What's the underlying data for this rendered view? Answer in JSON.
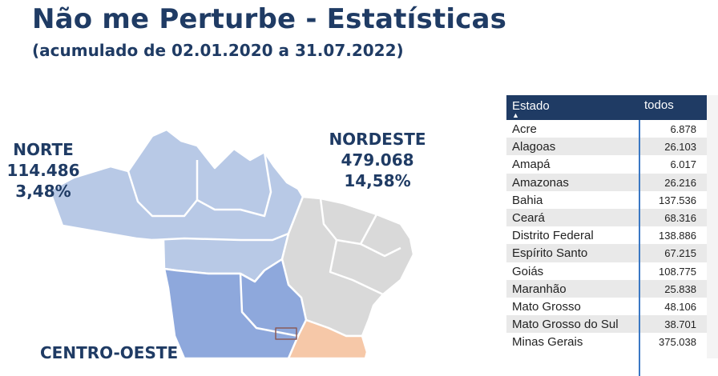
{
  "title": "Não me Perturbe - Estatísticas",
  "subtitle": "(acumulado de 02.01.2020 a 31.07.2022)",
  "regions": {
    "norte": {
      "name": "NORTE",
      "total": "114.486",
      "percent": "3,48%"
    },
    "nordeste": {
      "name": "NORDESTE",
      "total": "479.068",
      "percent": "14,58%"
    },
    "centro_oeste": {
      "name": "CENTRO-OESTE"
    }
  },
  "colors": {
    "norte": "#b8c9e6",
    "nordeste": "#d9d9d9",
    "centro_oeste": "#8ea8dc",
    "sudeste": "#f6c8a8",
    "heading": "#1f3b64"
  },
  "table": {
    "columns": [
      "Estado",
      "todos"
    ],
    "sort_icon": "sort-up-icon",
    "rows": [
      {
        "state": "Acre",
        "value": "6.878"
      },
      {
        "state": "Alagoas",
        "value": "26.103"
      },
      {
        "state": "Amapá",
        "value": "6.017"
      },
      {
        "state": "Amazonas",
        "value": "26.216"
      },
      {
        "state": "Bahia",
        "value": "137.536"
      },
      {
        "state": "Ceará",
        "value": "68.316"
      },
      {
        "state": "Distrito Federal",
        "value": "138.886"
      },
      {
        "state": "Espírito Santo",
        "value": "67.215"
      },
      {
        "state": "Goiás",
        "value": "108.775"
      },
      {
        "state": "Maranhão",
        "value": "25.838"
      },
      {
        "state": "Mato Grosso",
        "value": "48.106"
      },
      {
        "state": "Mato Grosso do Sul",
        "value": "38.701"
      },
      {
        "state": "Minas Gerais",
        "value": "375.038"
      }
    ]
  }
}
